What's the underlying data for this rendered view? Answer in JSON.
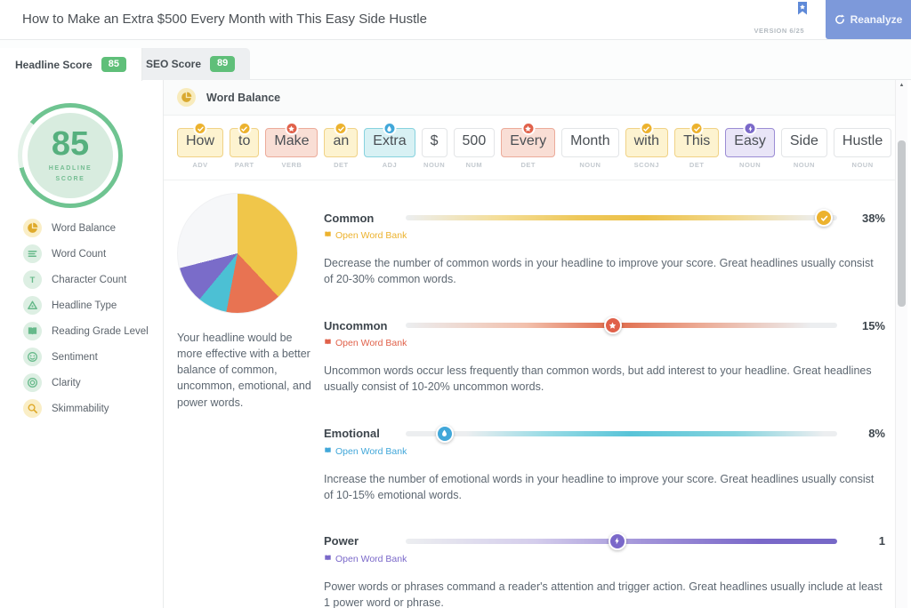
{
  "header": {
    "title": "How to Make an Extra $500 Every Month with This Easy Side Hustle",
    "version": "VERSION 6/25",
    "reanalyze_label": "Reanalyze",
    "accent_blue": "#7d99da",
    "bookmark_blue": "#5f8ad8"
  },
  "tabs": [
    {
      "label": "Headline Score",
      "badge": "85",
      "active": true,
      "badge_color": "#5fbf79"
    },
    {
      "label": "SEO Score",
      "badge": "89",
      "active": false,
      "badge_color": "#5fbf79"
    }
  ],
  "gauge": {
    "score": "85",
    "label_top": "HEADLINE",
    "label_bottom": "SCORE",
    "percent": 85,
    "ring_color": "#6fc491",
    "ring_track_color": "#e4f2e9",
    "score_color": "#56b07e"
  },
  "sidebar": {
    "tones": {
      "yellow": {
        "bg": "#faeec6",
        "fg": "#dfaa2b"
      },
      "green": {
        "bg": "#ddefe3",
        "fg": "#66b98a"
      }
    },
    "items": [
      {
        "label": "Word Balance",
        "icon": "pie-chart-icon",
        "tone": "yellow"
      },
      {
        "label": "Word Count",
        "icon": "list-icon",
        "tone": "green"
      },
      {
        "label": "Character Count",
        "icon": "text-icon",
        "tone": "green"
      },
      {
        "label": "Headline Type",
        "icon": "triangle-icon",
        "tone": "green"
      },
      {
        "label": "Reading Grade Level",
        "icon": "book-icon",
        "tone": "green"
      },
      {
        "label": "Sentiment",
        "icon": "smiley-icon",
        "tone": "green"
      },
      {
        "label": "Clarity",
        "icon": "target-icon",
        "tone": "green"
      },
      {
        "label": "Skimmability",
        "icon": "magnifier-icon",
        "tone": "yellow"
      }
    ]
  },
  "panel": {
    "header_title": "Word Balance",
    "header_icon": "pie-chart-icon",
    "header_icon_color": "#d9a92f"
  },
  "word_categories": {
    "common": {
      "icon": "check-icon",
      "badge_color": "#ecb22e",
      "bg": "#fdf3d0",
      "border": "#f0d286"
    },
    "uncommon": {
      "icon": "star-icon",
      "badge_color": "#e0614a",
      "bg": "#f9ded5",
      "border": "#ecab9a"
    },
    "emotional": {
      "icon": "droplet-icon",
      "badge_color": "#41a7d9",
      "bg": "#d8f1f4",
      "border": "#86d2de"
    },
    "power": {
      "icon": "bolt-icon",
      "badge_color": "#7a68c9",
      "bg": "#e9e5f7",
      "border": "#9b8cd4"
    },
    "none": {
      "icon": null,
      "badge_color": null,
      "bg": "#ffffff",
      "border": "#e3e5e7"
    }
  },
  "headline_words": [
    {
      "text": "How",
      "pos": "ADV",
      "category": "common"
    },
    {
      "text": "to",
      "pos": "PART",
      "category": "common"
    },
    {
      "text": "Make",
      "pos": "VERB",
      "category": "uncommon"
    },
    {
      "text": "an",
      "pos": "DET",
      "category": "common"
    },
    {
      "text": "Extra",
      "pos": "ADJ",
      "category": "emotional"
    },
    {
      "text": "$",
      "pos": "NOUN",
      "category": "none"
    },
    {
      "text": "500",
      "pos": "NUM",
      "category": "none"
    },
    {
      "text": "Every",
      "pos": "DET",
      "category": "uncommon"
    },
    {
      "text": "Month",
      "pos": "NOUN",
      "category": "none"
    },
    {
      "text": "with",
      "pos": "SCONJ",
      "category": "common"
    },
    {
      "text": "This",
      "pos": "DET",
      "category": "common"
    },
    {
      "text": "Easy",
      "pos": "NOUN",
      "category": "power"
    },
    {
      "text": "Side",
      "pos": "NOUN",
      "category": "none"
    },
    {
      "text": "Hustle",
      "pos": "NOUN",
      "category": "none"
    }
  ],
  "word_balance": {
    "caption": "Your headline would be more effective with a better balance of common, uncommon, emotional, and power words.",
    "pie_slices": [
      {
        "label": "Common",
        "percent": 38,
        "color": "#f0c64a"
      },
      {
        "label": "Uncommon",
        "percent": 15,
        "color": "#e87352"
      },
      {
        "label": "Emotional",
        "percent": 8,
        "color": "#4cc0d4"
      },
      {
        "label": "Power",
        "percent": 10,
        "color": "#7a6cc9"
      },
      {
        "label": "Other",
        "percent": 29,
        "color": "#f6f7f9"
      }
    ]
  },
  "metrics": {
    "link_label": "Open Word Bank",
    "items": [
      {
        "id": "common",
        "label": "Common",
        "value": "38%",
        "handle_percent": 97,
        "color": "#ecb22e",
        "icon": "check-icon",
        "description": "Decrease the number of common words in your headline to improve your score. Great headlines usually consist of 20-30% common words."
      },
      {
        "id": "uncommon",
        "label": "Uncommon",
        "value": "15%",
        "handle_percent": 48,
        "color": "#e0614a",
        "icon": "star-icon",
        "description": "Uncommon words occur less frequently than common words, but add interest to your headline. Great headlines usually consist of 10-20% uncommon words."
      },
      {
        "id": "emotional",
        "label": "Emotional",
        "value": "8%",
        "handle_percent": 9,
        "color": "#41a7d9",
        "icon": "droplet-icon",
        "description": "Increase the number of emotional words in your headline to improve your score. Great headlines usually consist of 10-15% emotional words."
      },
      {
        "id": "power",
        "label": "Power",
        "value": "1",
        "handle_percent": 49,
        "color": "#7a68c9",
        "icon": "bolt-icon",
        "description": "Power words or phrases command a reader's attention and trigger action. Great headlines usually include at least 1 power word or phrase."
      }
    ]
  },
  "scrollbar": {
    "up_arrow": "▲"
  }
}
